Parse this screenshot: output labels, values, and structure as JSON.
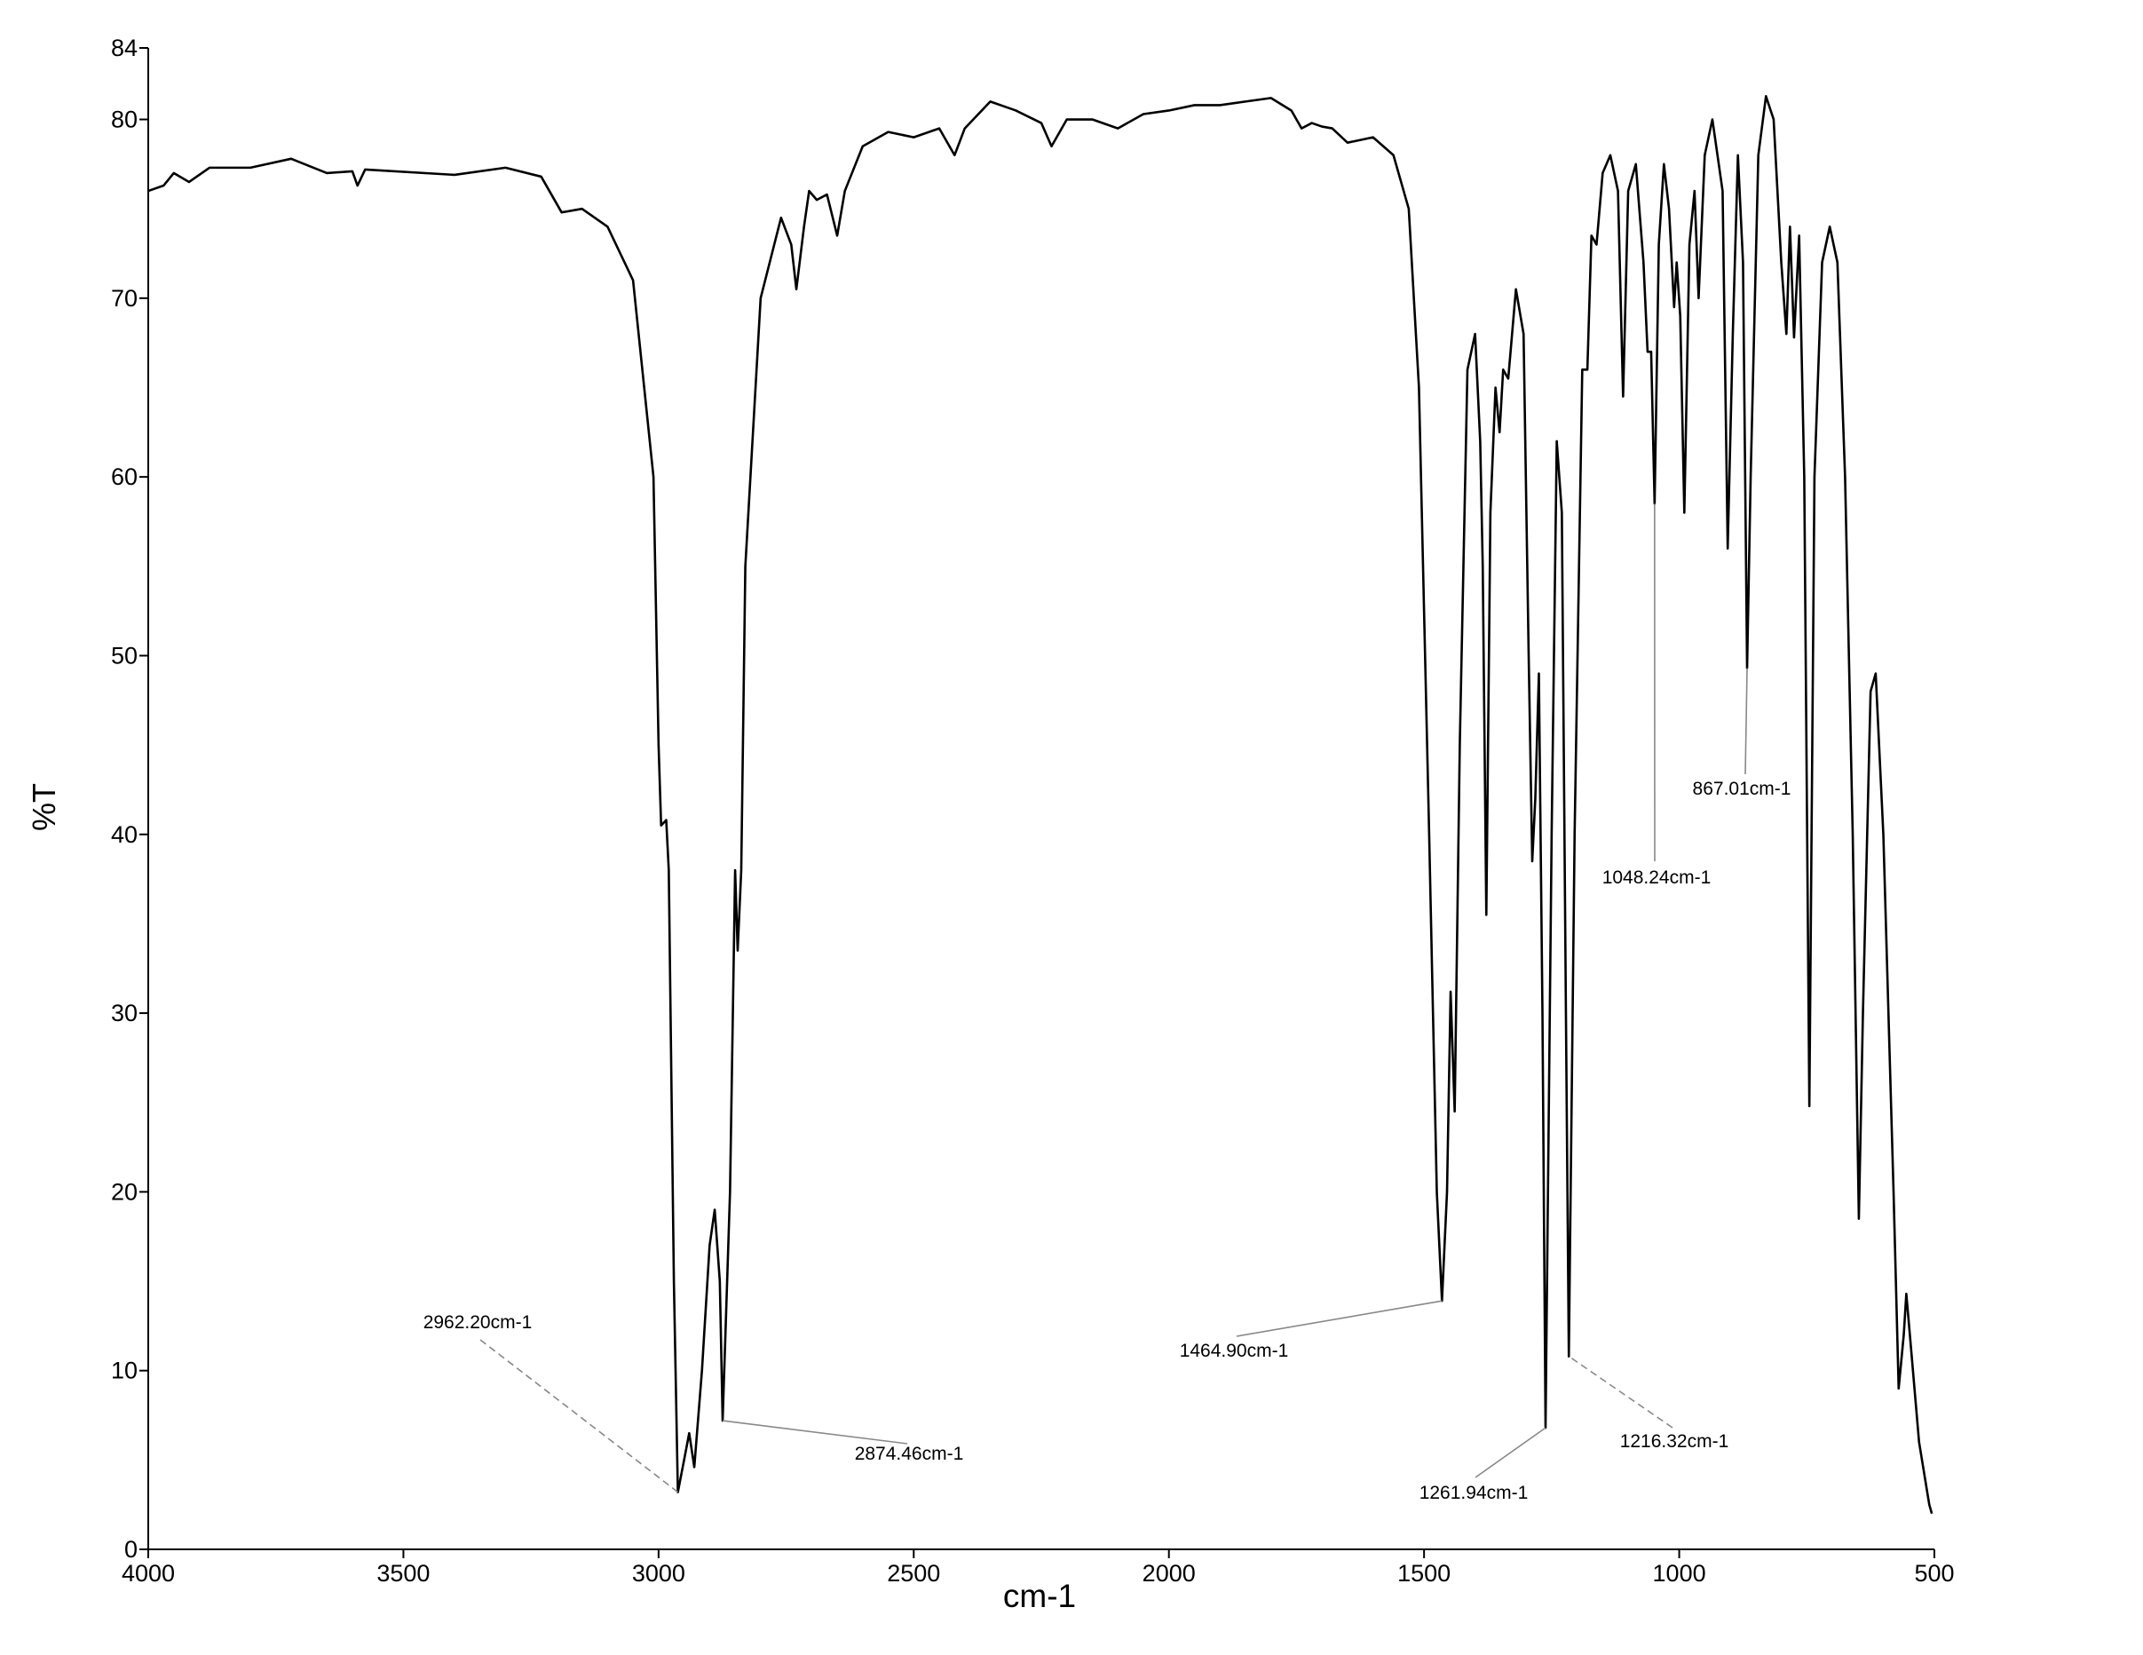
{
  "chart_data": {
    "type": "line",
    "xlabel": "cm-1",
    "ylabel": "%T",
    "xlim": [
      4000,
      500
    ],
    "xticks": [
      4000,
      3500,
      3000,
      2500,
      2000,
      1500,
      1000,
      500
    ],
    "ylim": [
      0,
      84
    ],
    "yticks": [
      0,
      10,
      20,
      30,
      40,
      50,
      60,
      70,
      80,
      84
    ],
    "grid": false,
    "x": [
      4000,
      3970,
      3950,
      3920,
      3880,
      3800,
      3720,
      3650,
      3600,
      3590,
      3575,
      3400,
      3300,
      3230,
      3190,
      3150,
      3100,
      3050,
      3010,
      3000,
      2995,
      2985,
      2980,
      2970,
      2962.2,
      2950,
      2940,
      2930,
      2915,
      2900,
      2890,
      2880,
      2874.46,
      2860,
      2850,
      2845,
      2838,
      2830,
      2800,
      2760,
      2740,
      2730,
      2715,
      2705,
      2690,
      2670,
      2650,
      2635,
      2600,
      2550,
      2500,
      2450,
      2420,
      2400,
      2350,
      2300,
      2250,
      2230,
      2200,
      2150,
      2100,
      2050,
      2000,
      1950,
      1900,
      1850,
      1800,
      1760,
      1740,
      1720,
      1700,
      1680,
      1650,
      1600,
      1560,
      1530,
      1510,
      1490,
      1475,
      1464.9,
      1455,
      1448,
      1440,
      1430,
      1415,
      1400,
      1390,
      1385,
      1378,
      1370,
      1360,
      1352,
      1345,
      1335,
      1320,
      1305,
      1295,
      1288,
      1282,
      1275,
      1268,
      1261.94,
      1250,
      1240,
      1230,
      1222,
      1216.32,
      1205,
      1190,
      1180,
      1172,
      1162,
      1150,
      1135,
      1120,
      1110,
      1100,
      1085,
      1070,
      1062,
      1055,
      1048.24,
      1040,
      1030,
      1020,
      1010,
      1005,
      998,
      990,
      980,
      970,
      962,
      950,
      935,
      915,
      905,
      895,
      885,
      875,
      867.01,
      860,
      845,
      830,
      815,
      800,
      790,
      783,
      775,
      765,
      755,
      745,
      735,
      720,
      705,
      690,
      675,
      660,
      648,
      640,
      625,
      615,
      600,
      580,
      570,
      560,
      555,
      545,
      530,
      510,
      505
    ],
    "series": [
      {
        "color": "#000000",
        "values": [
          76,
          76.3,
          77,
          76.5,
          77.3,
          77.3,
          77.8,
          77,
          77.1,
          76.3,
          77.2,
          76.9,
          77.3,
          76.8,
          74.8,
          75,
          74,
          71,
          60,
          45,
          40.5,
          40.8,
          38,
          15,
          3.2,
          5,
          6.5,
          4.6,
          10,
          17,
          19,
          15,
          7.2,
          20,
          38,
          33.5,
          38,
          55,
          70,
          74.5,
          73,
          70.5,
          74,
          76,
          75.5,
          75.8,
          73.5,
          76,
          78.5,
          79.3,
          79,
          79.5,
          78,
          79.5,
          81,
          80.5,
          79.8,
          78.5,
          80,
          80,
          79.5,
          80.3,
          80.5,
          80.8,
          80.8,
          81,
          81.2,
          80.5,
          79.5,
          79.8,
          79.6,
          79.5,
          78.7,
          79,
          78,
          75,
          65,
          40,
          20,
          13.9,
          20,
          31.2,
          24.5,
          45,
          66,
          68,
          62,
          55,
          35.5,
          58,
          65,
          62.5,
          66,
          65.5,
          70.5,
          68,
          50,
          38.5,
          42,
          49,
          30,
          6.8,
          40,
          62,
          58,
          30,
          10.8,
          40,
          66,
          66,
          73.5,
          73,
          77,
          78,
          76,
          64.5,
          76,
          77.5,
          72,
          67,
          67,
          58.5,
          73,
          77.5,
          75,
          69.5,
          72,
          69,
          58,
          73,
          76,
          70,
          78,
          80,
          76,
          56,
          68,
          78,
          72,
          49.3,
          60,
          78,
          81.3,
          80,
          72,
          68,
          74,
          67.8,
          73.5,
          60,
          24.8,
          60,
          72,
          74,
          72,
          60,
          40,
          18.5,
          30,
          48,
          49,
          40,
          20,
          9,
          12,
          14.3,
          11,
          6,
          2.5,
          2
        ]
      }
    ],
    "annotations": [
      {
        "label": "2962.20cm-1",
        "x": 2962.2,
        "y": 3.2
      },
      {
        "label": "2874.46cm-1",
        "x": 2874.46,
        "y": 7.2
      },
      {
        "label": "1464.90cm-1",
        "x": 1464.9,
        "y": 13.9
      },
      {
        "label": "1261.94cm-1",
        "x": 1261.94,
        "y": 6.8
      },
      {
        "label": "1216.32cm-1",
        "x": 1216.32,
        "y": 10.8
      },
      {
        "label": "1048.24cm-1",
        "x": 1048.24,
        "y": 58.5
      },
      {
        "label": "867.01cm-1",
        "x": 867.01,
        "y": 49.3
      }
    ]
  }
}
